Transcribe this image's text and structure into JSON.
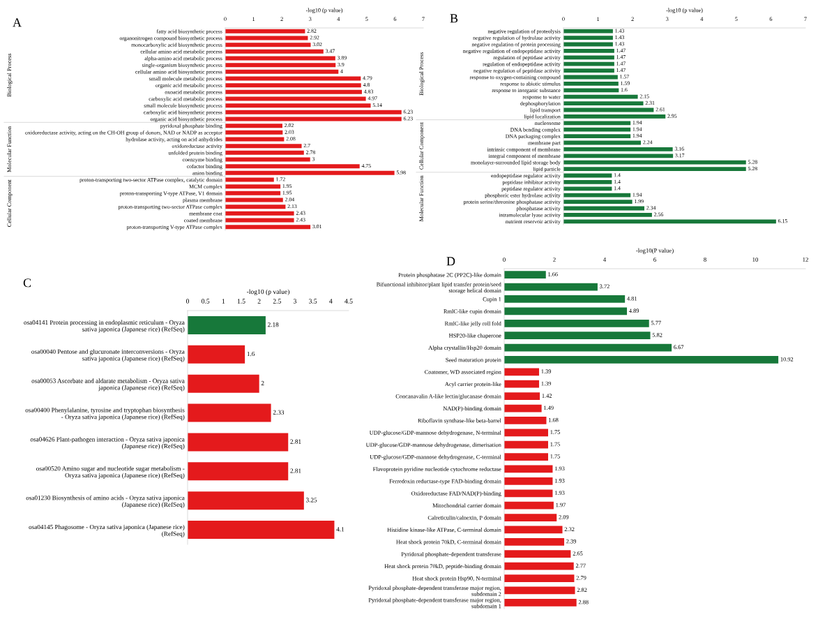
{
  "chart_data": [
    {
      "type": "bar",
      "orientation": "horizontal",
      "title": "A",
      "xlabel": "-log10 (p value)",
      "xlim": [
        0,
        7
      ],
      "xticks": [
        0,
        1,
        2,
        3,
        4,
        5,
        6,
        7
      ],
      "data_labels": true,
      "grid": false,
      "categories": [
        "fatty acid biosynthetic process",
        "organonitrogen compound biosynthetic process",
        "monocarboxylic acid biosynthetic process",
        "cellular amino acid metabolic process",
        "alpha-amino acid metabolic process",
        "single-organism biosynthetic process",
        "cellular amino acid biosynthetic process",
        "small molecule metabolic process",
        "organic acid metabolic process",
        "oxoacid metabolic process",
        "carboxylic acid metabolic process",
        "small molecule biosynthetic process",
        "carboxylic acid biosynthetic process",
        "organic acid biosynthetic process",
        "pyridoxal phosphate binding",
        "oxidoreductase activity, acting on the CH-OH group of donors, NAD or NADP as acceptor",
        "hydrolase activity, acting on acid anhydrides",
        "oxidoreductase activity",
        "unfolded protein binding",
        "coenzyme binding",
        "cofactor binding",
        "anion binding",
        "proton-transporting two-sector ATPase complex, catalytic domain",
        "MCM complex",
        "proton-transporting V-type ATPase, V1 domain",
        "plasma membrane",
        "proton-transporting two-sector ATPase complex",
        "membrane coat",
        "coated membrane",
        "proton-transporting V-type ATPase complex"
      ],
      "values": [
        2.82,
        2.92,
        3.02,
        3.47,
        3.89,
        3.9,
        4,
        4.79,
        4.8,
        4.83,
        4.97,
        5.14,
        6.23,
        6.23,
        2.02,
        2.03,
        2.08,
        2.7,
        2.78,
        3,
        4.75,
        5.98,
        1.72,
        1.95,
        1.95,
        2.04,
        2.13,
        2.43,
        2.43,
        3.01
      ],
      "colors": [
        "#e41a1c",
        "#e41a1c",
        "#e41a1c",
        "#e41a1c",
        "#e41a1c",
        "#e41a1c",
        "#e41a1c",
        "#e41a1c",
        "#e41a1c",
        "#e41a1c",
        "#e41a1c",
        "#e41a1c",
        "#e41a1c",
        "#e41a1c",
        "#e41a1c",
        "#e41a1c",
        "#e41a1c",
        "#e41a1c",
        "#e41a1c",
        "#e41a1c",
        "#e41a1c",
        "#e41a1c",
        "#e41a1c",
        "#e41a1c",
        "#e41a1c",
        "#e41a1c",
        "#e41a1c",
        "#e41a1c",
        "#e41a1c",
        "#e41a1c"
      ],
      "annotations": [
        "Biological Process",
        "Molecular Function",
        "Cellular Component"
      ]
    },
    {
      "type": "bar",
      "orientation": "horizontal",
      "title": "B",
      "xlabel": "-log10 (p value)",
      "xlim": [
        0,
        7
      ],
      "xticks": [
        0,
        1,
        2,
        3,
        4,
        5,
        6,
        7
      ],
      "data_labels": true,
      "grid": false,
      "categories": [
        "negative regulation of proteolysis",
        "negative regulation of hydrolase activity",
        "negative regulation of protein processing",
        "negative regulation of endopeptidase activity",
        "regulation of peptidase activity",
        "regulation of endopeptidase activity",
        "negative regulation of peptidase activity",
        "response to oxygen-containing compound",
        "response to abiotic stimulus",
        "response to inorganic substance",
        "response to water",
        "dephosphorylation",
        "lipid transport",
        "lipid localization",
        "nucleosome",
        "DNA bending complex",
        "DNA packaging complex",
        "membrane part",
        "intrinsic component of membrane",
        "integral component of membrane",
        "monolayer-surrounded lipid storage body",
        "lipid particle",
        "endopeptidase regulator activity",
        "peptidase inhibitor activity",
        "peptidase regulator activity",
        "phosphoric ester hydrolase activity",
        "protein serine/threonine phosphatase activity",
        "phosphatase activity",
        "intramolecular lyase activity",
        "nutrient reservoir activity"
      ],
      "values": [
        1.43,
        1.43,
        1.43,
        1.47,
        1.47,
        1.47,
        1.47,
        1.57,
        1.59,
        1.6,
        2.15,
        2.31,
        2.61,
        2.95,
        1.94,
        1.94,
        1.94,
        2.24,
        3.16,
        3.17,
        5.28,
        5.28,
        1.4,
        1.4,
        1.4,
        1.94,
        1.99,
        2.34,
        2.56,
        6.15
      ],
      "colors": [
        "#17783a",
        "#17783a",
        "#17783a",
        "#17783a",
        "#17783a",
        "#17783a",
        "#17783a",
        "#17783a",
        "#17783a",
        "#17783a",
        "#17783a",
        "#17783a",
        "#17783a",
        "#17783a",
        "#17783a",
        "#17783a",
        "#17783a",
        "#17783a",
        "#17783a",
        "#17783a",
        "#17783a",
        "#17783a",
        "#17783a",
        "#17783a",
        "#17783a",
        "#17783a",
        "#17783a",
        "#17783a",
        "#17783a",
        "#17783a"
      ],
      "annotations": [
        "Biological Process",
        "Cellular Component",
        "Molecular Function"
      ]
    },
    {
      "type": "bar",
      "orientation": "horizontal",
      "title": "C",
      "xlabel": "-log10 (p value)",
      "xlim": [
        0,
        4.5
      ],
      "xticks": [
        0,
        0.5,
        1,
        1.5,
        2,
        2.5,
        3,
        3.5,
        4,
        4.5
      ],
      "data_labels": true,
      "grid": false,
      "categories": [
        "osa04141 Protein processing in endoplasmic reticulum - Oryza sativa japonica (Japanese rice) (RefSeq)",
        "osa00040 Pentose and glucuronate interconversions - Oryza sativa japonica (Japanese rice) (RefSeq)",
        "osa00053 Ascorbate and aldarate metabolism - Oryza sativa japonica (Japanese rice) (RefSeq)",
        "osa00400 Phenylalanine, tyrosine and tryptophan biosynthesis - Oryza sativa japonica (Japanese rice) (RefSeq)",
        "osa04626 Plant-pathogen interaction - Oryza sativa japonica (Japanese rice) (RefSeq)",
        "osa00520 Amino sugar and nucleotide sugar metabolism - Oryza sativa japonica (Japanese rice) (RefSeq)",
        "osa01230 Biosynthesis of amino acids - Oryza sativa japonica (Japanese rice) (RefSeq)",
        "osa04145 Phagosome - Oryza sativa japonica (Japanese rice) (RefSeq)"
      ],
      "values": [
        2.18,
        1.6,
        2,
        2.33,
        2.81,
        2.81,
        3.25,
        4.1
      ],
      "colors": [
        "#17783a",
        "#e41a1c",
        "#e41a1c",
        "#e41a1c",
        "#e41a1c",
        "#e41a1c",
        "#e41a1c",
        "#e41a1c"
      ]
    },
    {
      "type": "bar",
      "orientation": "horizontal",
      "title": "D",
      "xlabel": "-log10(P value)",
      "xlim": [
        0,
        12
      ],
      "xticks": [
        0,
        2,
        4,
        6,
        8,
        10,
        12
      ],
      "data_labels": true,
      "grid": false,
      "categories": [
        "Protein phosphatase 2C (PP2C)-like domain",
        "Bifunctional inhibitor/plant lipid transfer protein/seed storage helical domain",
        "Cupin 1",
        "RmlC-like cupin domain",
        "RmlC-like jelly roll fold",
        "HSP20-like chaperone",
        "Alpha crystallin/Hsp20 domain",
        "Seed maturation protein",
        "Coatomer, WD associated region",
        "Acyl carrier protein-like",
        "Concanavalin A-like lectin/glucanase domain",
        "NAD(P)-binding domain",
        "Riboflavin synthase-like beta-barrel",
        "UDP-glucose/GDP-mannose dehydrogenase, N-terminal",
        "UDP-glucose/GDP-mannose dehydrogenase, dimerisation",
        "UDP-glucose/GDP-mannose dehydrogenase, C-terminal",
        "Flavoprotein pyridine nucleotide cytochrome reductase",
        "Ferredoxin reductase-type FAD-binding domain",
        "Oxidoreductase FAD/NAD(P)-binding",
        "Mitochondrial carrier domain",
        "Calreticulin/calnexin, P domain",
        "Histidine kinase-like ATPase, C-terminal domain",
        "Heat shock protein 70kD, C-terminal domain",
        "Pyridoxal phosphate-dependent transferase",
        "Heat shock protein 70kD, peptide-binding domain",
        "Heat shock protein Hsp90, N-terminal",
        "Pyridoxal phosphate-dependent transferase major region, subdomain 2",
        "Pyridoxal phosphate-dependent transferase major region, subdomain 1"
      ],
      "values": [
        1.66,
        3.72,
        4.81,
        4.89,
        5.77,
        5.82,
        6.67,
        10.92,
        1.39,
        1.39,
        1.42,
        1.49,
        1.68,
        1.75,
        1.75,
        1.75,
        1.93,
        1.93,
        1.93,
        1.97,
        2.09,
        2.32,
        2.39,
        2.65,
        2.77,
        2.79,
        2.82,
        2.88
      ],
      "colors": [
        "#17783a",
        "#17783a",
        "#17783a",
        "#17783a",
        "#17783a",
        "#17783a",
        "#17783a",
        "#17783a",
        "#e41a1c",
        "#e41a1c",
        "#e41a1c",
        "#e41a1c",
        "#e41a1c",
        "#e41a1c",
        "#e41a1c",
        "#e41a1c",
        "#e41a1c",
        "#e41a1c",
        "#e41a1c",
        "#e41a1c",
        "#e41a1c",
        "#e41a1c",
        "#e41a1c",
        "#e41a1c",
        "#e41a1c",
        "#e41a1c",
        "#e41a1c",
        "#e41a1c"
      ]
    }
  ]
}
